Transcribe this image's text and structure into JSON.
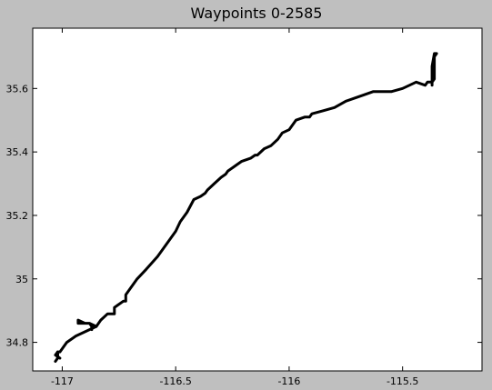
{
  "chart_data": {
    "type": "line",
    "title": "Waypoints 0-2585",
    "xlabel": "",
    "ylabel": "",
    "xlim": [
      -117.13,
      -115.15
    ],
    "ylim": [
      34.71,
      35.79
    ],
    "x_ticks": [
      {
        "value": -117,
        "label": "-117"
      },
      {
        "value": -116.5,
        "label": "-116.5"
      },
      {
        "value": -116,
        "label": "-116"
      },
      {
        "value": -115.5,
        "label": "-115.5"
      }
    ],
    "y_ticks": [
      {
        "value": 34.8,
        "label": "34.8"
      },
      {
        "value": 35,
        "label": "35"
      },
      {
        "value": 35.2,
        "label": "35.2"
      },
      {
        "value": 35.4,
        "label": "35.4"
      },
      {
        "value": 35.6,
        "label": "35.6"
      }
    ],
    "grid": false,
    "legend": "none",
    "series": [
      {
        "color": "#000000",
        "x": [
          -117.02,
          -117.02,
          -117.01,
          -117.0,
          -116.98,
          -116.96,
          -116.94,
          -116.91,
          -116.88,
          -116.85,
          -116.83,
          -116.8,
          -116.77,
          -116.77,
          -116.73,
          -116.72,
          -116.72,
          -116.7,
          -116.67,
          -116.63,
          -116.58,
          -116.53,
          -116.5,
          -116.48,
          -116.45,
          -116.42,
          -116.39,
          -116.37,
          -116.36,
          -116.33,
          -116.3,
          -116.28,
          -116.27,
          -116.25,
          -116.23,
          -116.21,
          -116.17,
          -116.15,
          -116.14,
          -116.11,
          -116.08,
          -116.05,
          -116.03,
          -116.0,
          -115.97,
          -115.93,
          -115.91,
          -115.9,
          -115.85,
          -115.8,
          -115.75,
          -115.71,
          -115.67,
          -115.63,
          -115.61,
          -115.6,
          -115.55,
          -115.5,
          -115.47,
          -115.44,
          -115.4,
          -115.39,
          -115.37,
          -115.37,
          -115.36,
          -115.35,
          -115.36,
          -115.36,
          -115.37,
          -115.37
        ],
        "y": [
          34.75,
          34.77,
          34.77,
          34.78,
          34.8,
          34.81,
          34.82,
          34.83,
          34.84,
          34.85,
          34.87,
          34.89,
          34.89,
          34.91,
          34.93,
          34.93,
          34.95,
          34.97,
          35.0,
          35.03,
          35.07,
          35.12,
          35.15,
          35.18,
          35.21,
          35.25,
          35.26,
          35.27,
          35.28,
          35.3,
          35.32,
          35.33,
          35.34,
          35.35,
          35.36,
          35.37,
          35.38,
          35.39,
          35.39,
          35.41,
          35.42,
          35.44,
          35.46,
          35.47,
          35.5,
          35.51,
          35.51,
          35.52,
          35.53,
          35.54,
          35.56,
          35.57,
          35.58,
          35.59,
          35.59,
          35.59,
          35.59,
          35.6,
          35.61,
          35.62,
          35.61,
          35.62,
          35.62,
          35.67,
          35.71,
          35.71,
          35.7,
          35.63,
          35.62,
          35.61
        ]
      },
      {
        "color": "#000000",
        "x": [
          -116.85,
          -116.88,
          -116.9,
          -116.93,
          -116.93,
          -116.9,
          -116.88,
          -116.87,
          -116.87
        ],
        "y": [
          34.85,
          34.86,
          34.86,
          34.86,
          34.87,
          34.86,
          34.86,
          34.85,
          34.84
        ]
      },
      {
        "color": "#000000",
        "x": [
          -117.03,
          -117.02,
          -117.02,
          -117.03,
          -117.01
        ],
        "y": [
          34.74,
          34.75,
          34.77,
          34.76,
          34.75
        ]
      }
    ]
  }
}
